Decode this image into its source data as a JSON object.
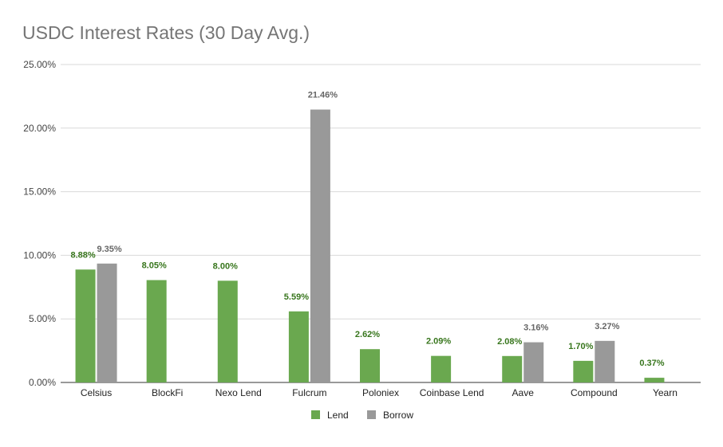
{
  "chart_data": {
    "type": "bar",
    "title": "USDC Interest Rates (30 Day Avg.)",
    "xlabel": "",
    "ylabel": "",
    "ylim": [
      0,
      25
    ],
    "yticks": [
      "0.00%",
      "5.00%",
      "10.00%",
      "15.00%",
      "20.00%",
      "25.00%"
    ],
    "categories": [
      "Celsius",
      "BlockFi",
      "Nexo Lend",
      "Fulcrum",
      "Poloniex",
      "Coinbase Lend",
      "Aave",
      "Compound",
      "Yearn"
    ],
    "series": [
      {
        "name": "Lend",
        "color": "#6aa84f",
        "label_color": "#38761d",
        "values": [
          8.88,
          8.05,
          8.0,
          5.59,
          2.62,
          2.09,
          2.08,
          1.7,
          0.37
        ],
        "labels": [
          "8.88%",
          "8.05%",
          "8.00%",
          "5.59%",
          "2.62%",
          "2.09%",
          "2.08%",
          "1.70%",
          "0.37%"
        ]
      },
      {
        "name": "Borrow",
        "color": "#999999",
        "label_color": "#666666",
        "values": [
          9.35,
          null,
          null,
          21.46,
          null,
          null,
          3.16,
          3.27,
          null
        ],
        "labels": [
          "9.35%",
          null,
          null,
          "21.46%",
          null,
          null,
          "3.16%",
          "3.27%",
          null
        ]
      }
    ],
    "grid": true,
    "legend": "bottom"
  }
}
